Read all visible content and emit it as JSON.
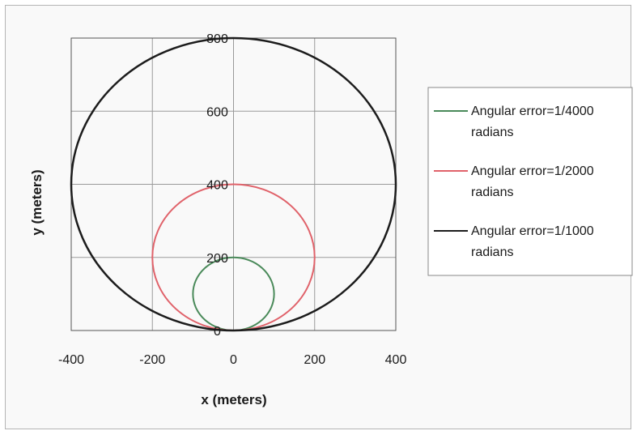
{
  "chart_data": {
    "type": "line",
    "title": "",
    "xlabel": "x (meters)",
    "ylabel": "y (meters)",
    "xlim": [
      -400,
      400
    ],
    "ylim": [
      0,
      800
    ],
    "x_ticks": [
      "-400",
      "-200",
      "0",
      "200",
      "400"
    ],
    "y_ticks": [
      "0",
      "200",
      "400",
      "600",
      "800"
    ],
    "grid": true,
    "legend_position": "right",
    "series": [
      {
        "name": "Angular error=1/4000 radians",
        "color": "#4a8a5a",
        "shape": "circle",
        "center": [
          0,
          100
        ],
        "radius": 100
      },
      {
        "name": "Angular error=1/2000 radians",
        "color": "#e0626a",
        "shape": "circle",
        "center": [
          0,
          200
        ],
        "radius": 200
      },
      {
        "name": "Angular error=1/1000 radians",
        "color": "#1c1c1c",
        "shape": "circle",
        "center": [
          0,
          400
        ],
        "radius": 400
      }
    ]
  }
}
